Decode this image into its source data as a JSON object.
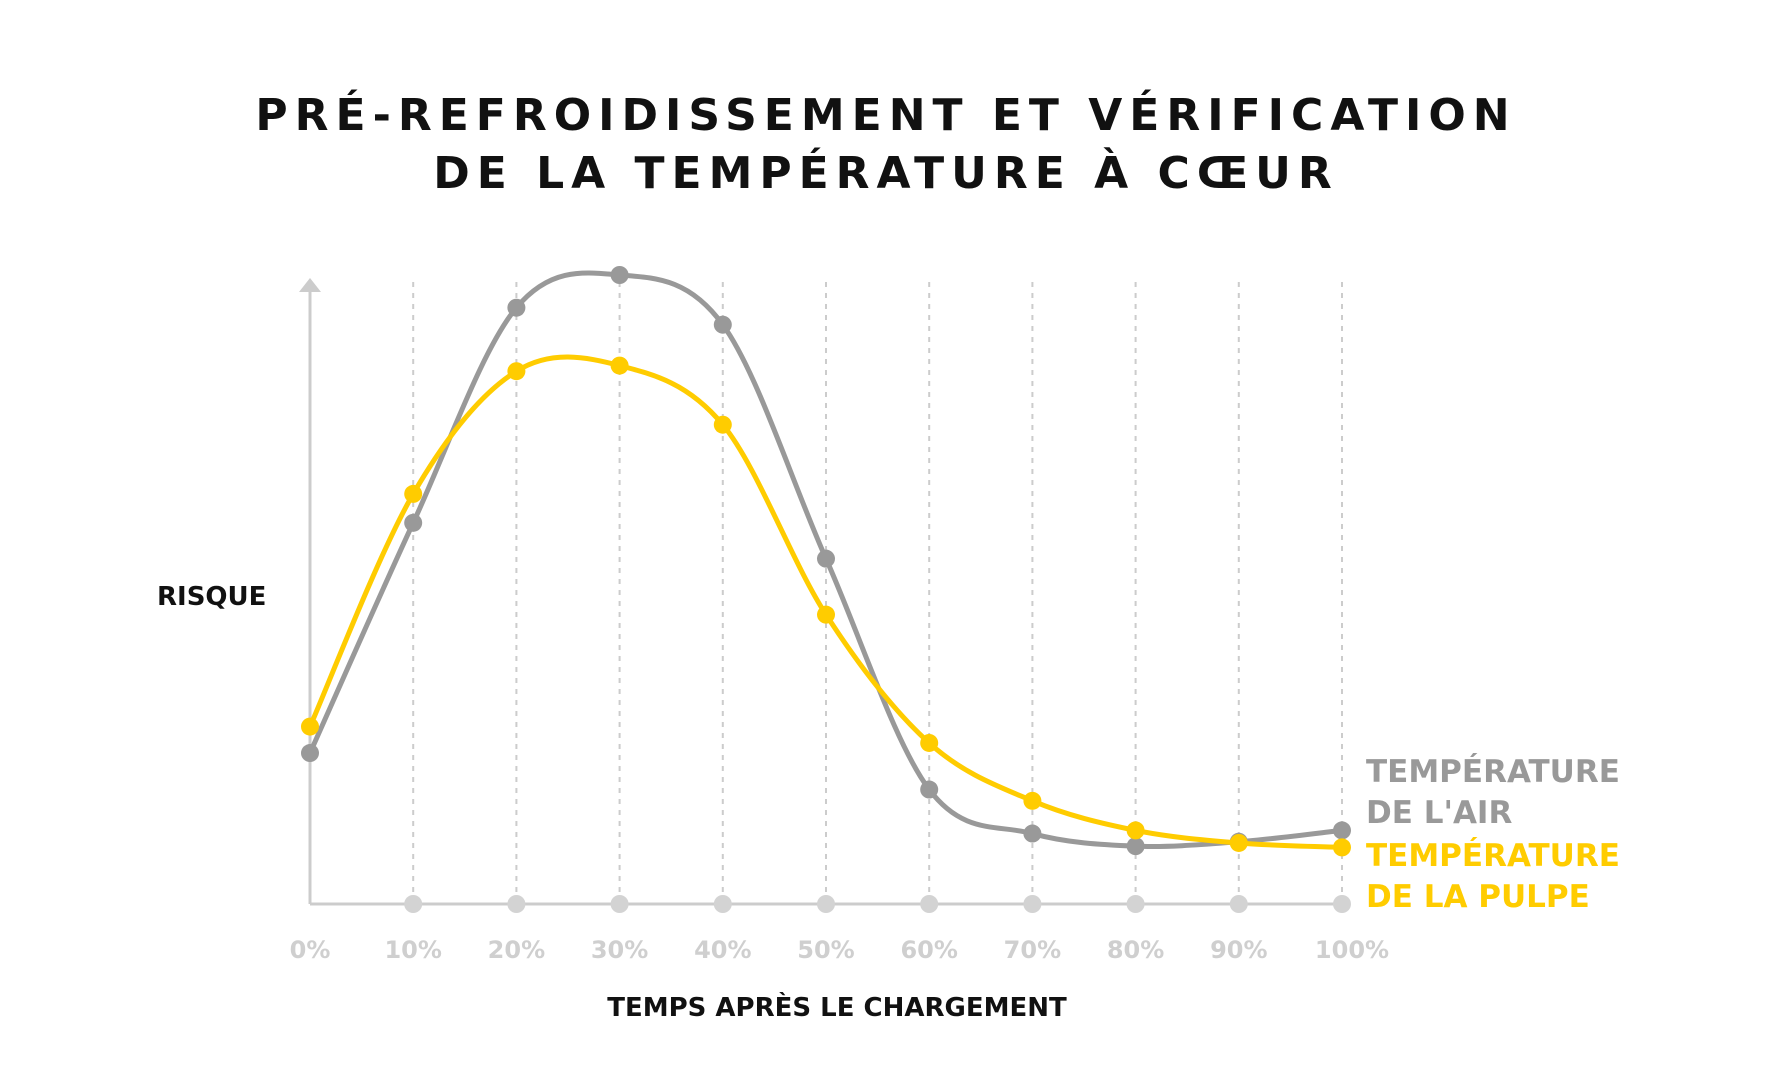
{
  "chart_data": {
    "type": "line",
    "title": [
      "PRÉ-REFROIDISSEMENT ET VÉRIFICATION",
      "DE LA TEMPÉRATURE À CŒUR"
    ],
    "xlabel": "TEMPS APRÈS LE CHARGEMENT",
    "ylabel": "RISQUE",
    "categories": [
      "0%",
      "10%",
      "20%",
      "30%",
      "40%",
      "50%",
      "60%",
      "70%",
      "80%",
      "90%",
      "100%"
    ],
    "ylim": [
      0,
      100
    ],
    "grid": "vertical dashed",
    "legend": "right",
    "series": [
      {
        "name": "TEMPÉRATURE DE L'AIR",
        "name_lines": [
          "TEMPÉRATURE",
          "DE L'AIR"
        ],
        "color": "#999999",
        "values": [
          24.0,
          60.6,
          94.8,
          100,
          92.1,
          54.9,
          18.2,
          11.2,
          9.2,
          9.9,
          11.7
        ]
      },
      {
        "name": "TEMPÉRATURE DE LA PULPE",
        "name_lines": [
          "TEMPÉRATURE",
          "DE LA PULPE"
        ],
        "color": "#FFCC00",
        "values": [
          28.2,
          65.2,
          84.7,
          85.6,
          76.2,
          46.0,
          25.6,
          16.4,
          11.7,
          9.7,
          9.0
        ]
      }
    ],
    "axis_color": "#cccccc"
  }
}
